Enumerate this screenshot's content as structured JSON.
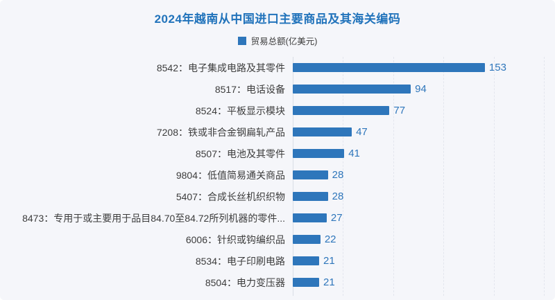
{
  "chart_data": {
    "type": "bar",
    "orientation": "horizontal",
    "title": "2024年越南从中国进口主要商品及其海关编码",
    "legend": {
      "label": "贸易总额(亿美元)",
      "swatch_color": "#2E76BB",
      "position": "top-center"
    },
    "categories": [
      "8542：电子集成电路及其零件",
      "8517：电话设备",
      "8524：平板显示模块",
      "7208：铁或非合金钢扁轧产品",
      "8507：电池及其零件",
      "9804：低值简易通关商品",
      "5407：合成长丝机织织物",
      "8473：专用于或主要用于品目84.70至84.72所列机器的零件...",
      "6006：针织或钩编织品",
      "8534：电子印刷电路",
      "8504：电力变压器"
    ],
    "values": [
      153,
      94,
      77,
      47,
      41,
      28,
      28,
      27,
      22,
      21,
      21
    ],
    "xlabel": "",
    "ylabel": "",
    "xlim": [
      0,
      200
    ],
    "gridline_interval": 40,
    "grid": "vertical-dashed",
    "colors": {
      "bar": "#2E76BB",
      "value_label": "#2E76BB",
      "title": "#2173BB",
      "category_label": "#3C3C3C",
      "axis_line": "#D9DDE5",
      "gridline": "#E3E6EE",
      "background": "#F5F6FA"
    }
  }
}
